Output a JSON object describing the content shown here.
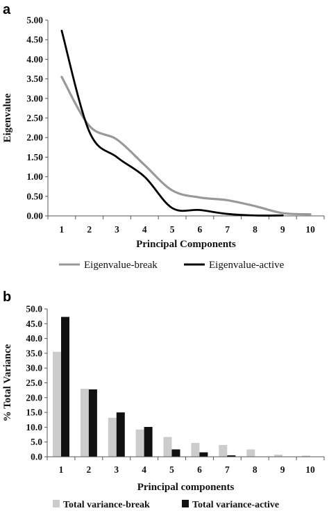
{
  "chart_data": [
    {
      "panel": "a",
      "type": "line",
      "x": [
        1,
        2,
        3,
        4,
        5,
        6,
        7,
        8,
        9,
        10
      ],
      "xticks": [
        "1",
        "2",
        "3",
        "4",
        "5",
        "6",
        "7",
        "8",
        "9",
        "10"
      ],
      "series": [
        {
          "name": "Eigenvalue-break",
          "color": "#999999",
          "x": [
            1,
            2,
            3,
            4,
            5,
            6,
            7,
            8,
            9,
            10
          ],
          "values": [
            3.55,
            2.3,
            1.95,
            1.3,
            0.65,
            0.47,
            0.4,
            0.25,
            0.07,
            0.04
          ]
        },
        {
          "name": "Eigenvalue-active",
          "color": "#000000",
          "x": [
            1,
            2,
            3,
            4,
            5,
            6,
            7,
            8,
            9
          ],
          "values": [
            4.73,
            2.15,
            1.5,
            1.0,
            0.2,
            0.15,
            0.05,
            0.01,
            0.01
          ]
        }
      ],
      "xlabel": "Principal Components",
      "ylabel": "Eigenvalue",
      "ylim": [
        0,
        5
      ],
      "yticks": [
        "0.00",
        "0.50",
        "1.00",
        "1.50",
        "2.00",
        "2.50",
        "3.00",
        "3.50",
        "4.00",
        "4.50",
        "5.00"
      ],
      "legend": "bottom",
      "grid": false
    },
    {
      "panel": "b",
      "type": "bar",
      "categories": [
        "1",
        "2",
        "3",
        "4",
        "5",
        "6",
        "7",
        "8",
        "9",
        "10"
      ],
      "series": [
        {
          "name": "Total variance-break",
          "color": "#cccccc",
          "values": [
            35.5,
            23.0,
            13.2,
            9.2,
            6.7,
            4.7,
            4.0,
            2.5,
            0.7,
            0.4
          ]
        },
        {
          "name": "Total variance-active",
          "color": "#111111",
          "values": [
            47.3,
            22.8,
            15.0,
            10.1,
            2.5,
            1.5,
            0.5,
            0.0,
            0.0,
            0.0
          ]
        }
      ],
      "xlabel": "Principal components",
      "ylabel": "% Total Variance",
      "ylim": [
        0,
        50
      ],
      "yticks": [
        "0.0",
        "5.0",
        "10.0",
        "15.0",
        "20.0",
        "25.0",
        "30.0",
        "35.0",
        "40.0",
        "45.0",
        "50.0"
      ],
      "legend": "bottom",
      "grid": false
    }
  ]
}
